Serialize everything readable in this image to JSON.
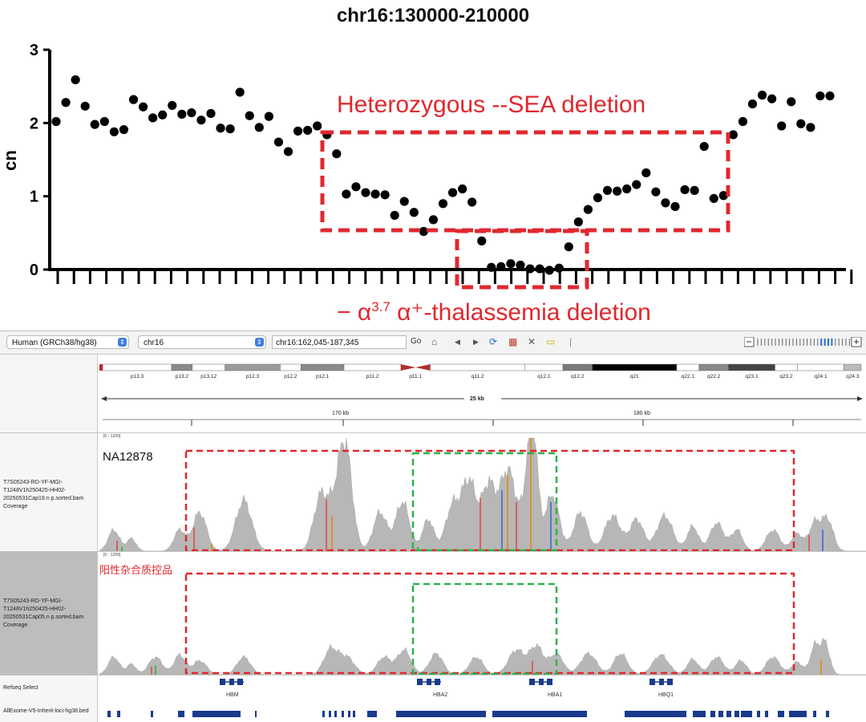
{
  "top_chart": {
    "title": "chr16:130000-210000",
    "ylabel": "cn",
    "yticks": [
      "0",
      "1",
      "2",
      "3"
    ],
    "annotation_sea": "Heterozygous --SEA deletion",
    "annotation_a37_prefix": "− α",
    "annotation_a37_sup": "3.7",
    "annotation_a37_suffix": " α⁺-thalassemia deletion",
    "colors": {
      "points": "#000000",
      "annotation": "#e0282e"
    }
  },
  "chart_data": {
    "type": "scatter",
    "title": "chr16:130000-210000",
    "xlabel": "",
    "ylabel": "cn",
    "ylim": [
      0,
      3
    ],
    "y_ticks": [
      0,
      1,
      2,
      3
    ],
    "grid": false,
    "values": [
      2.02,
      2.28,
      2.59,
      2.23,
      1.98,
      2.02,
      1.88,
      1.91,
      2.32,
      2.22,
      2.07,
      2.11,
      2.24,
      2.12,
      2.14,
      2.04,
      2.13,
      1.93,
      1.92,
      2.42,
      2.1,
      1.94,
      2.09,
      1.74,
      1.61,
      1.89,
      1.9,
      1.96,
      1.84,
      1.58,
      1.03,
      1.13,
      1.05,
      1.03,
      1.02,
      0.74,
      0.93,
      0.78,
      0.52,
      0.68,
      0.9,
      1.05,
      1.1,
      0.92,
      0.39,
      0.03,
      0.04,
      0.08,
      0.06,
      0.01,
      0.01,
      -0.01,
      0.02,
      0.31,
      0.65,
      0.82,
      0.98,
      1.08,
      1.07,
      1.1,
      1.16,
      1.32,
      1.06,
      0.91,
      0.86,
      1.09,
      1.08,
      1.68,
      0.97,
      1.01,
      1.84,
      2.02,
      2.26,
      2.38,
      2.33,
      1.96,
      2.29,
      1.99,
      1.94,
      2.37,
      2.37
    ]
  },
  "igv": {
    "genome": "Human (GRCh38/hg38)",
    "chromosome": "chr16",
    "locus": "chr16:162,045-187,345",
    "go_label": "Go",
    "cytobands": [
      "p13.3",
      "p13.2",
      "p13.12",
      "p12.3",
      "p12.2",
      "p12.1",
      "p11.2",
      "p11.1",
      "q11.2",
      "q12.1",
      "q12.2",
      "q21",
      "q22.1",
      "q22.2",
      "q23.1",
      "q23.2",
      "q24.1",
      "q24.3"
    ],
    "span_label": "25 kb",
    "ruler_labels": [
      "170 kb",
      "180 kb"
    ],
    "track1": {
      "name": "T7S05243-RD-YF-MGI-T1248V1h250425-HH02-20250531Cap19.n p.sorted.bam Coverage",
      "range": "[0 - 1200]",
      "sample": "NA12878"
    },
    "track2": {
      "name": "T7S05243-RD-YF-MGI-T1248V1h250425-HH02-20250531Cap05.n p.sorted.bam Coverage",
      "range": "[0 - 1200]",
      "sample": "阳性杂合质控品"
    },
    "refseq_track": "Refseq Select",
    "bed_track": "AllExome-V5-Inherit-loci-hg38.bed",
    "genes": [
      "HBM",
      "HBA2",
      "HBA1",
      "HBQ1"
    ],
    "colors": {
      "coverage": "#b7b7b7",
      "red_box": "#e0282e",
      "green_box": "#2db34a",
      "gene": "#1a3a8c"
    }
  }
}
